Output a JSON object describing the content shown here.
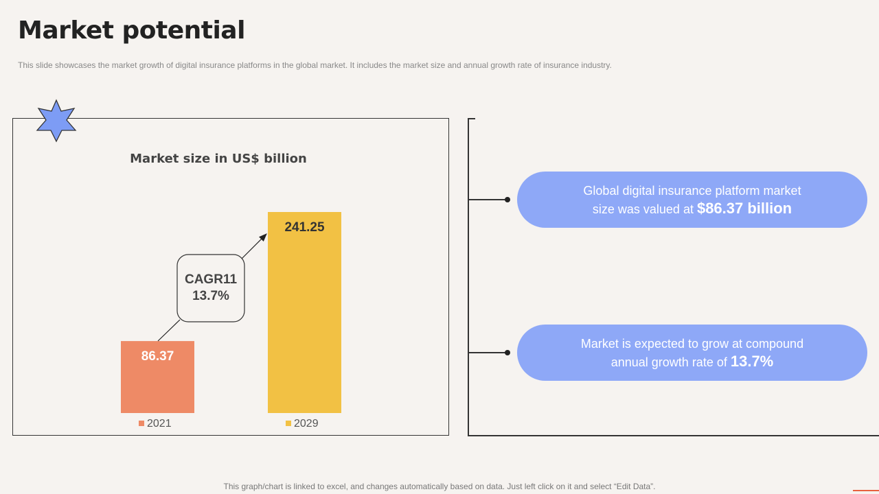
{
  "header": {
    "title": "Market potential",
    "subtitle": "This slide showcases the market growth of digital insurance platforms in the global market. It includes the market size and annual growth rate of insurance industry."
  },
  "chart_data": {
    "type": "bar",
    "title": "Market size in US$ billion",
    "categories": [
      "2021",
      "2029"
    ],
    "values": [
      86.37,
      241.25
    ],
    "value_labels": [
      "86.37",
      "241.25"
    ],
    "colors": [
      "#ee8a66",
      "#f2c144"
    ],
    "annotation": {
      "line1": "CAGR11",
      "line2": "13.7%"
    },
    "legend_placement": "bottom",
    "grid": false
  },
  "cards": [
    {
      "line1": "Global digital insurance platform market",
      "line2_prefix": "size was valued at ",
      "highlight": "$86.37 billion"
    },
    {
      "line1": "Market is expected to grow at compound",
      "line2_prefix": "annual growth rate of ",
      "highlight": "13.7%"
    }
  ],
  "footer": {
    "note": "This graph/chart is linked to excel, and changes automatically based on data. Just left click on it and select “Edit Data”."
  },
  "colors": {
    "background": "#f6f3f0",
    "accent_blue": "#8ea8f7",
    "accent_orange": "#ee8a66",
    "accent_yellow": "#f2c144"
  }
}
